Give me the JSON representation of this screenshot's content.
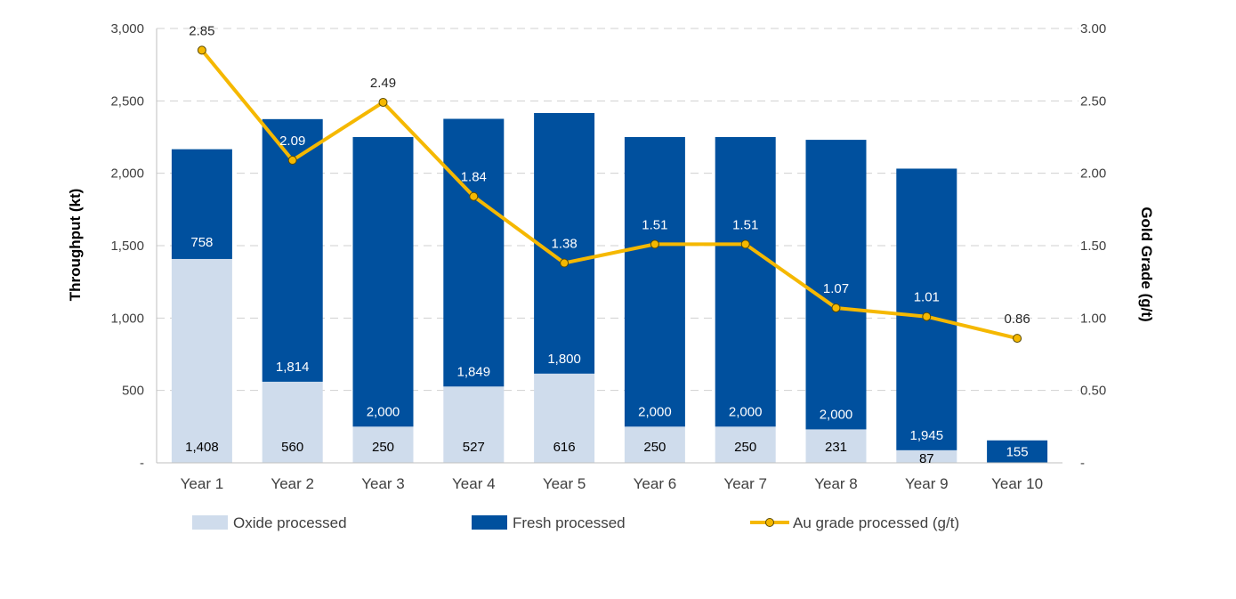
{
  "chart_data": {
    "type": "bar",
    "stacked": true,
    "categories": [
      "Year 1",
      "Year 2",
      "Year 3",
      "Year 4",
      "Year 5",
      "Year 6",
      "Year 7",
      "Year 8",
      "Year 9",
      "Year 10"
    ],
    "series": [
      {
        "name": "Oxide processed",
        "kind": "bar",
        "axis": "left",
        "color": "#cfdcec",
        "values": [
          1408,
          560,
          250,
          527,
          616,
          250,
          250,
          231,
          87,
          0
        ],
        "labels": [
          "1,408",
          "560",
          "250",
          "527",
          "616",
          "250",
          "250",
          "231",
          "87",
          ""
        ]
      },
      {
        "name": "Fresh processed",
        "kind": "bar",
        "axis": "left",
        "color": "#00509e",
        "values": [
          758,
          1814,
          2000,
          1849,
          1800,
          2000,
          2000,
          2000,
          1945,
          155
        ],
        "labels": [
          "758",
          "1,814",
          "2,000",
          "1,849",
          "1,800",
          "2,000",
          "2,000",
          "2,000",
          "1,945",
          "155"
        ]
      },
      {
        "name": "Au grade processed (g/t)",
        "kind": "line",
        "axis": "right",
        "color": "#f5b800",
        "values": [
          2.85,
          2.09,
          2.49,
          1.84,
          1.38,
          1.51,
          1.51,
          1.07,
          1.01,
          0.86
        ],
        "labels": [
          "2.85",
          "2.09",
          "2.49",
          "1.84",
          "1.38",
          "1.51",
          "1.51",
          "1.07",
          "1.01",
          "0.86"
        ]
      }
    ],
    "ylabel": "Throughput (kt)",
    "y2label": "Gold Grade (g/t)",
    "ylim": [
      0,
      3000
    ],
    "y2lim": [
      0,
      3.0
    ],
    "yticks": [
      "-",
      "500",
      "1,000",
      "1,500",
      "2,000",
      "2,500",
      "3,000"
    ],
    "y2ticks": [
      "-",
      "0.50",
      "1.00",
      "1.50",
      "2.00",
      "2.50",
      "3.00"
    ],
    "grid": true,
    "legend_position": "bottom"
  }
}
